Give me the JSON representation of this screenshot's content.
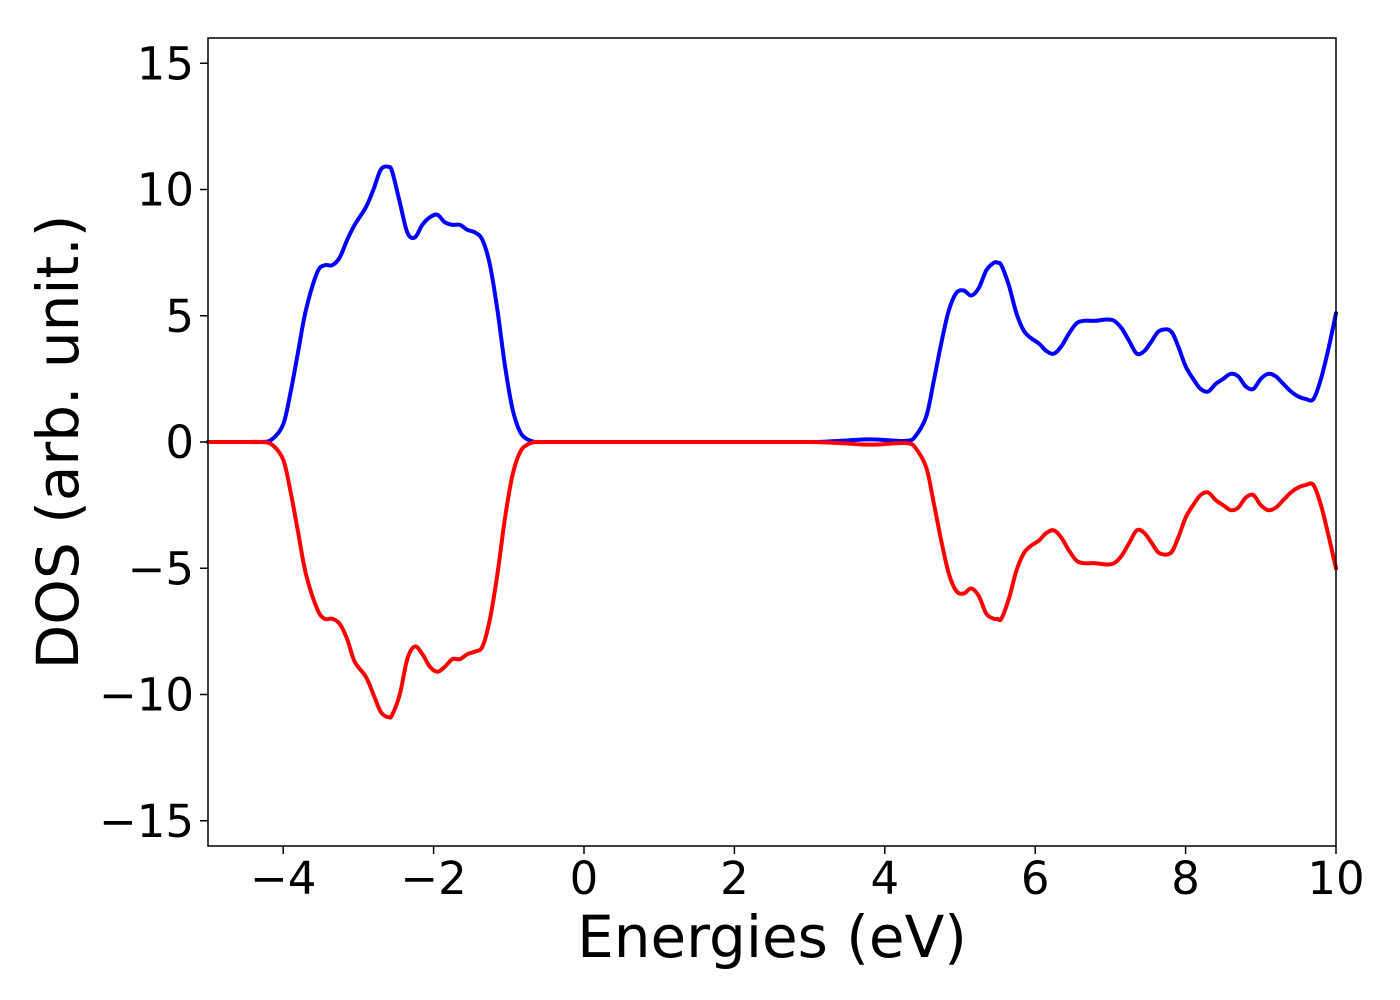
{
  "chart_data": {
    "type": "line",
    "title": "",
    "xlabel": "Energies (eV)",
    "ylabel": "DOS (arb. unit.)",
    "xlim": [
      -5,
      10
    ],
    "ylim": [
      -16,
      16
    ],
    "xticks": [
      -4,
      -2,
      0,
      2,
      4,
      6,
      8,
      10
    ],
    "yticks": [
      15,
      10,
      5,
      0,
      -5,
      -10,
      -15
    ],
    "xtick_labels": [
      "−4",
      "−2",
      "0",
      "2",
      "4",
      "6",
      "8",
      "10"
    ],
    "ytick_labels": [
      "15",
      "10",
      "5",
      "0",
      "−5",
      "−10",
      "−15"
    ],
    "grid": false,
    "legend": "none",
    "series": [
      {
        "color": "#0000ff",
        "x": [
          -5,
          -4.5,
          -4.3,
          -4.15,
          -4.0,
          -3.9,
          -3.8,
          -3.7,
          -3.55,
          -3.45,
          -3.35,
          -3.25,
          -3.15,
          -3.05,
          -2.9,
          -2.8,
          -2.7,
          -2.6,
          -2.55,
          -2.45,
          -2.35,
          -2.25,
          -2.15,
          -2.05,
          -1.95,
          -1.85,
          -1.75,
          -1.65,
          -1.55,
          -1.45,
          -1.35,
          -1.25,
          -1.15,
          -1.05,
          -0.95,
          -0.85,
          -0.75,
          -0.65,
          -0.55,
          0,
          1,
          2,
          3,
          3.3,
          3.5,
          3.7,
          3.9,
          4.1,
          4.3,
          4.4,
          4.55,
          4.65,
          4.75,
          4.85,
          4.95,
          5.05,
          5.15,
          5.25,
          5.35,
          5.45,
          5.5,
          5.55,
          5.65,
          5.75,
          5.85,
          5.95,
          6.05,
          6.15,
          6.25,
          6.35,
          6.45,
          6.55,
          6.65,
          6.8,
          6.95,
          7.05,
          7.15,
          7.25,
          7.35,
          7.45,
          7.55,
          7.65,
          7.8,
          7.9,
          8.0,
          8.1,
          8.2,
          8.3,
          8.4,
          8.5,
          8.6,
          8.7,
          8.8,
          8.9,
          9.0,
          9.1,
          9.2,
          9.3,
          9.4,
          9.5,
          9.6,
          9.7,
          9.8,
          9.9,
          10.0
        ],
        "y": [
          0,
          0,
          0,
          0.1,
          0.7,
          2.0,
          3.6,
          5.2,
          6.7,
          7.0,
          7.0,
          7.3,
          8.0,
          8.6,
          9.3,
          10.0,
          10.8,
          10.9,
          10.7,
          9.5,
          8.3,
          8.1,
          8.6,
          8.9,
          9.0,
          8.7,
          8.6,
          8.6,
          8.4,
          8.3,
          8.0,
          7.0,
          5.2,
          3.0,
          1.3,
          0.4,
          0.1,
          0,
          0,
          0,
          0,
          0,
          0,
          0.03,
          0.06,
          0.1,
          0.1,
          0.06,
          0.05,
          0.2,
          1.0,
          2.4,
          3.9,
          5.2,
          5.9,
          6.0,
          5.8,
          6.1,
          6.8,
          7.1,
          7.1,
          7.0,
          6.2,
          5.1,
          4.4,
          4.1,
          3.9,
          3.6,
          3.5,
          3.8,
          4.3,
          4.7,
          4.8,
          4.8,
          4.85,
          4.8,
          4.5,
          4.0,
          3.5,
          3.6,
          4.0,
          4.4,
          4.4,
          3.8,
          3.0,
          2.5,
          2.1,
          2.0,
          2.3,
          2.5,
          2.7,
          2.6,
          2.2,
          2.1,
          2.5,
          2.7,
          2.6,
          2.3,
          2.0,
          1.8,
          1.7,
          1.7,
          2.5,
          3.7,
          5.1
        ]
      },
      {
        "color": "#ff0000",
        "x": [
          -5,
          -4.5,
          -4.3,
          -4.15,
          -4.0,
          -3.9,
          -3.8,
          -3.7,
          -3.55,
          -3.45,
          -3.35,
          -3.25,
          -3.15,
          -3.05,
          -2.9,
          -2.8,
          -2.7,
          -2.6,
          -2.55,
          -2.45,
          -2.35,
          -2.25,
          -2.15,
          -2.05,
          -1.95,
          -1.85,
          -1.75,
          -1.65,
          -1.55,
          -1.45,
          -1.35,
          -1.25,
          -1.15,
          -1.05,
          -0.95,
          -0.85,
          -0.75,
          -0.65,
          -0.55,
          0,
          1,
          2,
          3,
          3.3,
          3.5,
          3.7,
          3.9,
          4.1,
          4.3,
          4.4,
          4.55,
          4.65,
          4.75,
          4.85,
          4.95,
          5.05,
          5.15,
          5.25,
          5.35,
          5.45,
          5.5,
          5.55,
          5.65,
          5.75,
          5.85,
          5.95,
          6.05,
          6.15,
          6.25,
          6.35,
          6.45,
          6.55,
          6.65,
          6.8,
          6.95,
          7.05,
          7.15,
          7.25,
          7.35,
          7.45,
          7.55,
          7.65,
          7.8,
          7.9,
          8.0,
          8.1,
          8.2,
          8.3,
          8.4,
          8.5,
          8.6,
          8.7,
          8.8,
          8.9,
          9.0,
          9.1,
          9.2,
          9.3,
          9.4,
          9.5,
          9.6,
          9.7,
          9.8,
          9.9,
          10.0
        ],
        "y": [
          0,
          0,
          0,
          -0.1,
          -0.7,
          -2.0,
          -3.6,
          -5.2,
          -6.6,
          -7.0,
          -7.0,
          -7.2,
          -7.8,
          -8.7,
          -9.3,
          -10.0,
          -10.7,
          -10.9,
          -10.8,
          -10.0,
          -8.6,
          -8.1,
          -8.4,
          -8.9,
          -9.1,
          -8.9,
          -8.6,
          -8.6,
          -8.4,
          -8.3,
          -8.1,
          -7.0,
          -5.2,
          -3.0,
          -1.3,
          -0.4,
          -0.1,
          0,
          0,
          0,
          0,
          0,
          0,
          -0.03,
          -0.06,
          -0.1,
          -0.1,
          -0.06,
          -0.05,
          -0.2,
          -1.0,
          -2.4,
          -3.9,
          -5.2,
          -5.9,
          -6.0,
          -5.8,
          -6.1,
          -6.8,
          -7.0,
          -7.0,
          -7.0,
          -6.2,
          -5.1,
          -4.4,
          -4.1,
          -3.9,
          -3.6,
          -3.5,
          -3.8,
          -4.3,
          -4.7,
          -4.8,
          -4.8,
          -4.85,
          -4.8,
          -4.5,
          -4.0,
          -3.5,
          -3.6,
          -4.0,
          -4.4,
          -4.4,
          -3.8,
          -3.0,
          -2.5,
          -2.1,
          -2.0,
          -2.3,
          -2.5,
          -2.7,
          -2.6,
          -2.2,
          -2.1,
          -2.5,
          -2.7,
          -2.6,
          -2.3,
          -2.0,
          -1.8,
          -1.7,
          -1.7,
          -2.5,
          -3.7,
          -5.0
        ]
      }
    ]
  }
}
